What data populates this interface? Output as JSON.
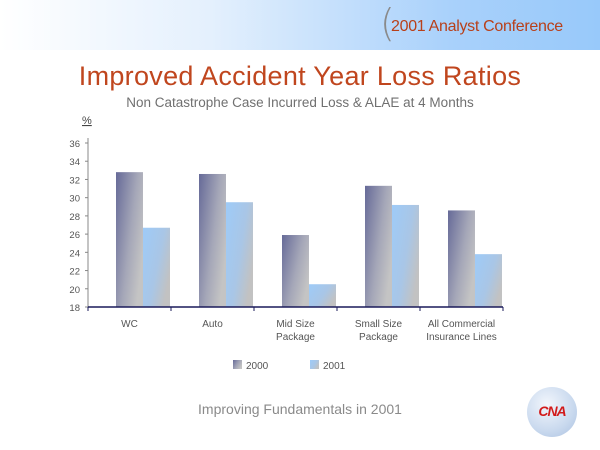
{
  "header": {
    "conference": "2001 Analyst Conference"
  },
  "title": "Improved Accident Year Loss Ratios",
  "footer": "Improving Fundamentals in 2001",
  "logo_text": "CNA",
  "colors": {
    "series_2000": "#666c98",
    "series_2001": "#9ecbf7",
    "title": "#c0461e"
  },
  "chart_data": {
    "type": "bar",
    "title": "Improved Accident Year Loss Ratios",
    "subtitle": "Non Catastrophe Case Incurred Loss & ALAE at 4 Months",
    "ylabel": "%",
    "xlabel": "",
    "ylim": [
      18,
      36
    ],
    "yticks": [
      18,
      20,
      22,
      24,
      26,
      28,
      30,
      32,
      34,
      36
    ],
    "categories": [
      [
        "WC"
      ],
      [
        "Auto"
      ],
      [
        "Mid Size",
        "Package"
      ],
      [
        "Small Size",
        "Package"
      ],
      [
        "All Commercial",
        "Insurance Lines"
      ]
    ],
    "series": [
      {
        "name": "2000",
        "values": [
          32.8,
          32.6,
          25.9,
          31.3,
          28.6
        ]
      },
      {
        "name": "2001",
        "values": [
          26.7,
          29.5,
          20.5,
          29.2,
          23.8
        ]
      }
    ],
    "legend": "bottom",
    "grid": false
  }
}
